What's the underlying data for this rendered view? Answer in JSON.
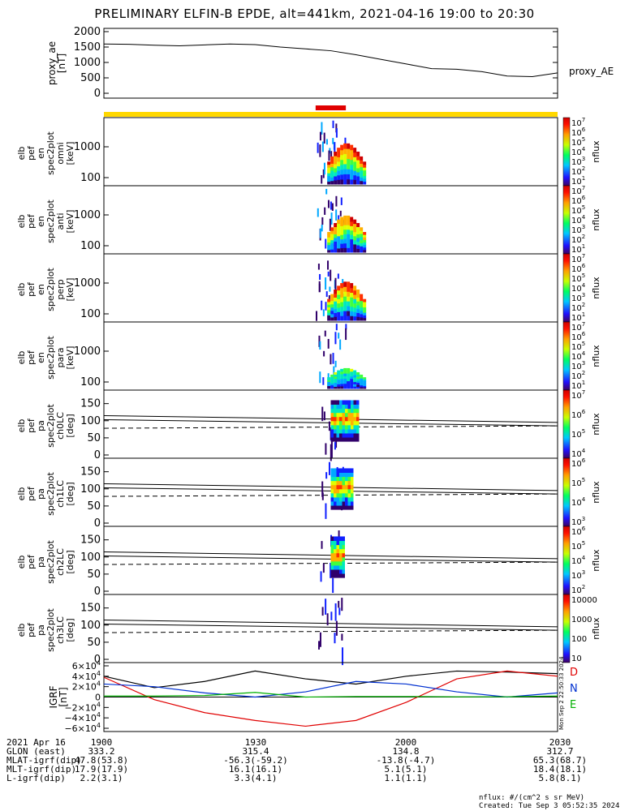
{
  "title": "PRELIMINARY ELFIN-B EPDE, alt=441km, 2021-04-16 19:00 to 20:30",
  "proxy_ae": {
    "ylabel_lines": [
      "proxy_ae",
      "[nT]"
    ],
    "yticks": [
      "2000",
      "1500",
      "1000",
      "500",
      "0"
    ],
    "legend": "proxy_AE",
    "t": [
      0,
      5,
      10,
      15,
      20,
      25,
      30,
      35,
      40,
      45,
      50,
      55,
      60,
      65,
      70,
      75,
      80,
      85,
      90
    ],
    "values": [
      1600,
      1590,
      1560,
      1540,
      1570,
      1600,
      1580,
      1500,
      1440,
      1380,
      1250,
      1100,
      950,
      800,
      780,
      700,
      560,
      540,
      660
    ]
  },
  "spectrogram_panels": [
    {
      "id": "omni",
      "ylabel_lines": [
        "elb",
        "pef",
        "en",
        "spec2plot",
        "omni",
        "[keV]"
      ],
      "yticks": [
        "1000",
        "100"
      ],
      "cbar_label": "nflux",
      "cbar_ticks": [
        "10^7",
        "10^6",
        "10^5",
        "10^4",
        "10^3",
        "10^2",
        "10^1"
      ]
    },
    {
      "id": "anti",
      "ylabel_lines": [
        "elb",
        "pef",
        "en",
        "spec2plot",
        "anti",
        "[keV]"
      ],
      "yticks": [
        "1000",
        "100"
      ],
      "cbar_label": "nflux",
      "cbar_ticks": [
        "10^7",
        "10^6",
        "10^5",
        "10^4",
        "10^3",
        "10^2",
        "10^1"
      ]
    },
    {
      "id": "perp",
      "ylabel_lines": [
        "elb",
        "pef",
        "en",
        "spec2plot",
        "perp",
        "[keV]"
      ],
      "yticks": [
        "1000",
        "100"
      ],
      "cbar_label": "nflux",
      "cbar_ticks": [
        "10^7",
        "10^6",
        "10^5",
        "10^4",
        "10^3",
        "10^2",
        "10^1"
      ]
    },
    {
      "id": "para",
      "ylabel_lines": [
        "elb",
        "pef",
        "en",
        "spec2plot",
        "para",
        "[keV]"
      ],
      "yticks": [
        "1000",
        "100"
      ],
      "cbar_label": "nflux",
      "cbar_ticks": [
        "10^7",
        "10^6",
        "10^5",
        "10^4",
        "10^3",
        "10^2",
        "10^1"
      ]
    }
  ],
  "pitch_panels": [
    {
      "id": "ch0LC",
      "ylabel_lines": [
        "elb",
        "pef",
        "pa",
        "spec2plot",
        "ch0LC",
        "[deg]"
      ],
      "yticks": [
        "150",
        "100",
        "50",
        "0"
      ],
      "cbar_label": "nflux",
      "cbar_ticks": [
        "10^7",
        "10^6",
        "10^5",
        "10^4"
      ]
    },
    {
      "id": "ch1LC",
      "ylabel_lines": [
        "elb",
        "pef",
        "pa",
        "spec2plot",
        "ch1LC",
        "[deg]"
      ],
      "yticks": [
        "150",
        "100",
        "50",
        "0"
      ],
      "cbar_label": "nflux",
      "cbar_ticks": [
        "10^6",
        "10^5",
        "10^4",
        "10^3"
      ]
    },
    {
      "id": "ch2LC",
      "ylabel_lines": [
        "elb",
        "pef",
        "pa",
        "spec2plot",
        "ch2LC",
        "[deg]"
      ],
      "yticks": [
        "150",
        "100",
        "50",
        "0"
      ],
      "cbar_label": "nflux",
      "cbar_ticks": [
        "10^6",
        "10^5",
        "10^4",
        "10^3",
        "10^2"
      ]
    },
    {
      "id": "ch3LC",
      "ylabel_lines": [
        "elb",
        "pef",
        "pa",
        "spec2plot",
        "ch3LC",
        "[deg]"
      ],
      "yticks": [
        "150",
        "100",
        "50",
        "0"
      ],
      "cbar_label": "nflux",
      "cbar_ticks": [
        "10000",
        "1000",
        "100",
        "10"
      ]
    }
  ],
  "igrf": {
    "ylabel_lines": [
      "IGRF",
      "[nT]"
    ],
    "yticks": [
      "6×10^4",
      "4×10^4",
      "2×10^4",
      "0",
      "−2×10^4",
      "−4×10^4",
      "−6×10^4"
    ],
    "legend": [
      {
        "name": "D",
        "color": "#e00000"
      },
      {
        "name": "N",
        "color": "#0030d0"
      },
      {
        "name": "E",
        "color": "#00b000"
      }
    ],
    "side_stamp": "Mon Sep 2 22:50:33 2024",
    "t": [
      0,
      10,
      20,
      30,
      40,
      50,
      60,
      70,
      80,
      90
    ],
    "black": [
      40000,
      18000,
      30000,
      50000,
      35000,
      25000,
      40000,
      50000,
      48000,
      45000
    ],
    "red": [
      38000,
      -5000,
      -30000,
      -45000,
      -56000,
      -45000,
      -10000,
      35000,
      50000,
      40000
    ],
    "blue": [
      25000,
      20000,
      8000,
      0,
      10000,
      30000,
      25000,
      10000,
      0,
      8000
    ],
    "green": [
      2000,
      2000,
      3000,
      9000,
      0,
      1000,
      1000,
      500,
      500,
      2000
    ]
  },
  "colors": {
    "red_bar": "#e00000",
    "yellow_bar": "#ffd800",
    "text": "#000000"
  },
  "footer": {
    "rows": [
      {
        "label": "2021 Apr 16",
        "values": [
          "1900",
          "1930",
          "2000",
          "2030"
        ]
      },
      {
        "label": "GLON (east)",
        "values": [
          "333.2",
          "315.4",
          "134.8",
          "312.7"
        ]
      },
      {
        "label": "MLAT-igrf(dip)",
        "values": [
          "47.8(53.8)",
          "-56.3(-59.2)",
          "-13.8(-4.7)",
          "65.3(68.7)"
        ]
      },
      {
        "label": "MLT-igrf(dip)",
        "values": [
          "17.9(17.9)",
          "16.1(16.1)",
          "5.1(5.1)",
          "18.4(18.1)"
        ]
      },
      {
        "label": "L-igrf(dip)",
        "values": [
          "2.2(3.1)",
          "3.3(4.1)",
          "1.1(1.1)",
          "5.8(8.1)"
        ]
      }
    ],
    "units_note": "nflux: #/(cm^2 s sr MeV)",
    "created": "Created: Tue Sep  3 05:52:35 2024"
  },
  "chart_data": [
    {
      "type": "line",
      "title": "PRELIMINARY ELFIN-B EPDE, alt=441km, 2021-04-16 19:00 to 20:30",
      "xlabel": "",
      "ylabel": "proxy_ae [nT]",
      "ylim": [
        0,
        2000
      ],
      "x": [
        "1900",
        "1905",
        "1910",
        "1915",
        "1920",
        "1925",
        "1930",
        "1935",
        "1940",
        "1945",
        "1950",
        "1955",
        "2000",
        "2005",
        "2010",
        "2015",
        "2020",
        "2025",
        "2030"
      ],
      "series": [
        {
          "name": "proxy_AE",
          "values": [
            1600,
            1590,
            1560,
            1540,
            1570,
            1600,
            1580,
            1500,
            1440,
            1380,
            1250,
            1100,
            950,
            800,
            780,
            700,
            560,
            540,
            660
          ]
        }
      ]
    },
    {
      "type": "heatmap",
      "ylabel": "elb pef en spec2plot [keV]",
      "note": "energy spectrograms omni/anti/perp/para, active ~1944-1952",
      "ylim": [
        60,
        7000
      ]
    },
    {
      "type": "heatmap",
      "ylabel": "elb pef pa spec2plot [deg]",
      "note": "pitch-angle spectrograms ch0LC-ch3LC",
      "ylim": [
        0,
        180
      ]
    },
    {
      "type": "line",
      "ylabel": "IGRF [nT]",
      "ylim": [
        -60000,
        60000
      ],
      "x": [
        "1900",
        "1910",
        "1920",
        "1930",
        "1940",
        "1950",
        "2000",
        "2010",
        "2020",
        "2030"
      ],
      "series": [
        {
          "name": "",
          "values": [
            40000,
            18000,
            30000,
            50000,
            35000,
            25000,
            40000,
            50000,
            48000,
            45000
          ]
        },
        {
          "name": "D",
          "values": [
            38000,
            -5000,
            -30000,
            -45000,
            -56000,
            -45000,
            -10000,
            35000,
            50000,
            40000
          ]
        },
        {
          "name": "N",
          "values": [
            25000,
            20000,
            8000,
            0,
            10000,
            30000,
            25000,
            10000,
            0,
            8000
          ]
        },
        {
          "name": "E",
          "values": [
            2000,
            2000,
            3000,
            9000,
            0,
            1000,
            1000,
            500,
            500,
            2000
          ]
        }
      ]
    }
  ]
}
